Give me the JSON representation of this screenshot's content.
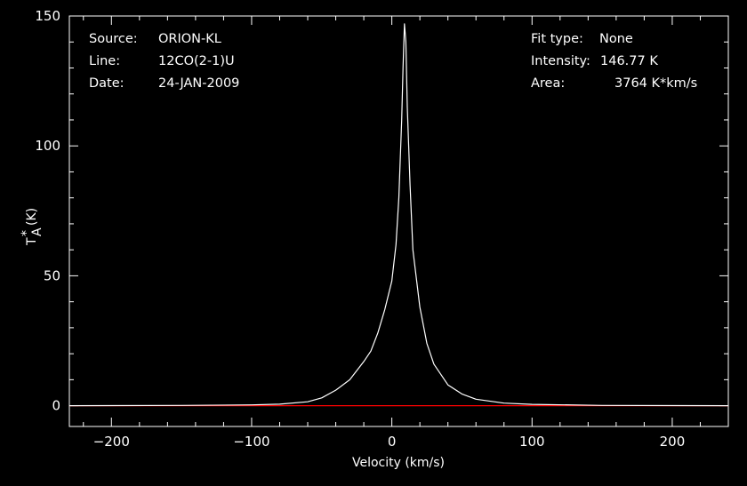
{
  "header": {
    "source_label": "Source:",
    "source_value": "ORION-KL",
    "line_label": "Line:",
    "line_value": "12CO(2-1)U",
    "date_label": "Date:",
    "date_value": "24-JAN-2009",
    "fit_label": "Fit type:",
    "fit_value": "None",
    "intensity_label": "Intensity:",
    "intensity_value": "146.77 K",
    "area_label": "Area:",
    "area_value": "3764 K*km/s"
  },
  "chart_data": {
    "type": "line",
    "xlabel": "Velocity (km/s)",
    "ylabel_main": "T",
    "ylabel_sup": "*",
    "ylabel_sub": "A",
    "ylabel_unit": "(K)",
    "xlim": [
      -230,
      240
    ],
    "ylim": [
      -8,
      150
    ],
    "xticks": [
      -200,
      -100,
      0,
      100,
      200
    ],
    "xtick_labels": [
      "−200",
      "−100",
      "0",
      "100",
      "200"
    ],
    "yticks": [
      0,
      50,
      100,
      150
    ],
    "ytick_labels": [
      "0",
      "50",
      "100",
      "150"
    ],
    "grid": false,
    "series": [
      {
        "line_color": "#ffffff",
        "x": [
          -230,
          -150,
          -100,
          -80,
          -60,
          -50,
          -40,
          -30,
          -20,
          -15,
          -10,
          -5,
          0,
          3,
          5,
          7,
          8,
          9,
          10,
          11,
          13,
          15,
          20,
          25,
          30,
          40,
          50,
          60,
          80,
          100,
          150,
          240
        ],
        "y": [
          0,
          0.1,
          0.3,
          0.6,
          1.5,
          3,
          6,
          10,
          17,
          21,
          28,
          37,
          48,
          62,
          80,
          110,
          130,
          147,
          140,
          115,
          85,
          60,
          38,
          24,
          16,
          8,
          4.5,
          2.5,
          1,
          0.5,
          0.1,
          0
        ]
      },
      {
        "line_color": "#ff0000",
        "x": [
          -230,
          240
        ],
        "y": [
          0,
          0
        ]
      }
    ]
  }
}
